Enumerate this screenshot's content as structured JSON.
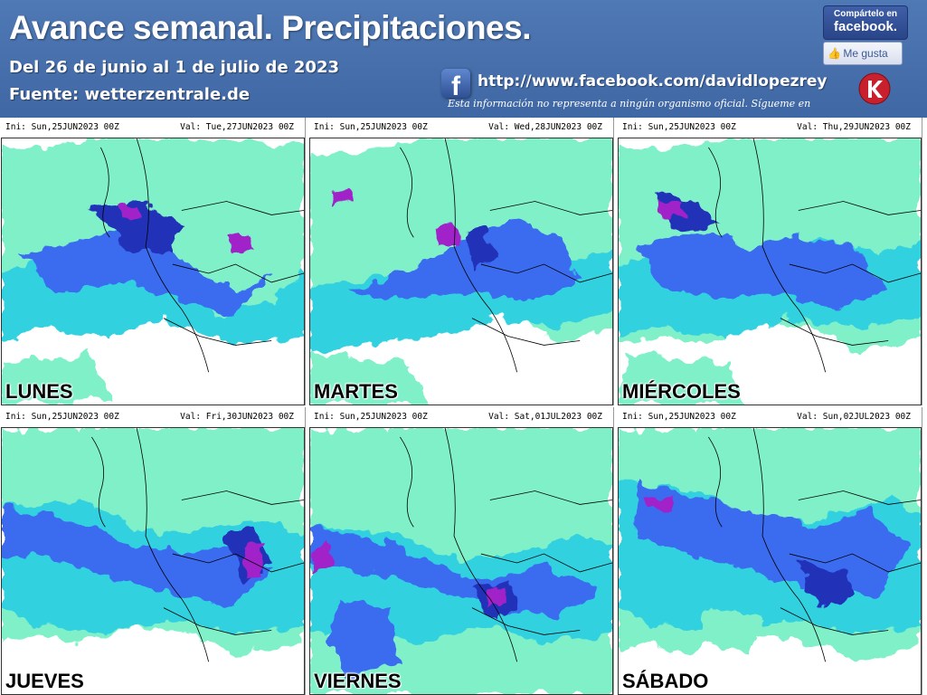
{
  "header": {
    "title": "Avance semanal. Precipitaciones.",
    "date_range": "Del 26 de junio al 1 de julio de 2023",
    "source": "Fuente: wetterzentrale.de",
    "facebook_url": "http://www.facebook.com/davidlopezrey",
    "disclaimer": "Esta información no representa a ningún organismo oficial. Sígueme en",
    "share_top": "Compártelo en",
    "share_brand": "facebook.",
    "like_label": "Me gusta",
    "fb_icon_glyph": "f",
    "accent_color": "#4a73b0"
  },
  "panels": [
    {
      "ini": "Ini: Sun,25JUN2023 00Z",
      "val": "Val: Tue,27JUN2023 00Z",
      "day": "LUNES"
    },
    {
      "ini": "Ini: Sun,25JUN2023 00Z",
      "val": "Val: Wed,28JUN2023 00Z",
      "day": "MARTES"
    },
    {
      "ini": "Ini: Sun,25JUN2023 00Z",
      "val": "Val: Thu,29JUN2023 00Z",
      "day": "MIÉRCOLES"
    },
    {
      "ini": "Ini: Sun,25JUN2023 00Z",
      "val": "Val: Fri,30JUN2023 00Z",
      "day": "JUEVES"
    },
    {
      "ini": "Ini: Sun,25JUN2023 00Z",
      "val": "Val: Sat,01JUL2023 00Z",
      "day": "VIERNES"
    },
    {
      "ini": "Ini: Sun,25JUN2023 00Z",
      "val": "Val: Sun,02JUL2023 00Z",
      "day": "SÁBADO"
    }
  ],
  "legend_colors": {
    "light": "#7ff0c8",
    "medium": "#33d1e0",
    "blue": "#3b6cf0",
    "dark": "#2130b8",
    "heavy": "#a020c8"
  }
}
